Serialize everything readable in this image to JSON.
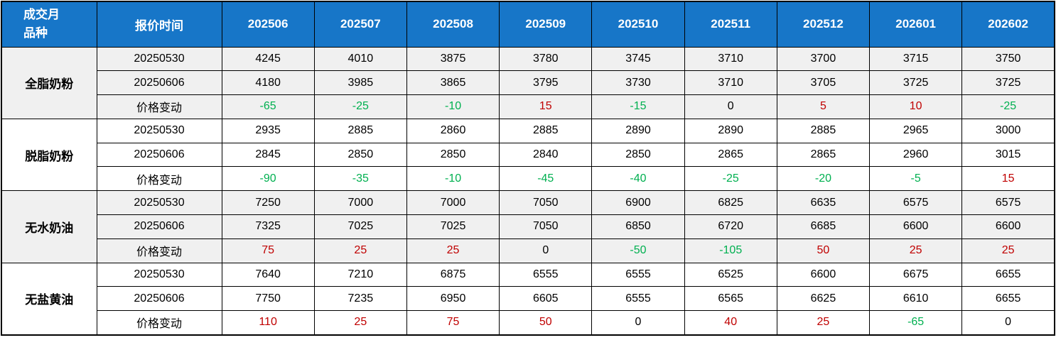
{
  "table": {
    "corner": {
      "line1": "成交月",
      "line2": "品种"
    },
    "quote_time_header": "报价时间",
    "months": [
      "202506",
      "202507",
      "202508",
      "202509",
      "202510",
      "202511",
      "202512",
      "202601",
      "202602"
    ],
    "groups": [
      {
        "product": "全脂奶粉",
        "shaded": true,
        "rows": [
          {
            "label": "20250530",
            "type": "price",
            "values": [
              4245,
              4010,
              3875,
              3780,
              3745,
              3710,
              3700,
              3715,
              3750
            ]
          },
          {
            "label": "20250606",
            "type": "price",
            "values": [
              4180,
              3985,
              3865,
              3795,
              3730,
              3710,
              3705,
              3725,
              3725
            ]
          },
          {
            "label": "价格变动",
            "type": "change",
            "values": [
              -65,
              -25,
              -10,
              15,
              -15,
              0,
              5,
              10,
              -25
            ]
          }
        ]
      },
      {
        "product": "脱脂奶粉",
        "shaded": false,
        "rows": [
          {
            "label": "20250530",
            "type": "price",
            "values": [
              2935,
              2885,
              2860,
              2885,
              2890,
              2890,
              2885,
              2965,
              3000
            ]
          },
          {
            "label": "20250606",
            "type": "price",
            "values": [
              2845,
              2850,
              2850,
              2840,
              2850,
              2865,
              2865,
              2960,
              3015
            ]
          },
          {
            "label": "价格变动",
            "type": "change",
            "values": [
              -90,
              -35,
              -10,
              -45,
              -40,
              -25,
              -20,
              -5,
              15
            ]
          }
        ]
      },
      {
        "product": "无水奶油",
        "shaded": true,
        "rows": [
          {
            "label": "20250530",
            "type": "price",
            "values": [
              7250,
              7000,
              7000,
              7050,
              6900,
              6825,
              6635,
              6575,
              6575
            ]
          },
          {
            "label": "20250606",
            "type": "price",
            "values": [
              7325,
              7025,
              7025,
              7050,
              6850,
              6720,
              6685,
              6600,
              6600
            ]
          },
          {
            "label": "价格变动",
            "type": "change",
            "values": [
              75,
              25,
              25,
              0,
              -50,
              -105,
              50,
              25,
              25
            ]
          }
        ]
      },
      {
        "product": "无盐黄油",
        "shaded": false,
        "rows": [
          {
            "label": "20250530",
            "type": "price",
            "values": [
              7640,
              7210,
              6875,
              6555,
              6555,
              6525,
              6600,
              6675,
              6655
            ]
          },
          {
            "label": "20250606",
            "type": "price",
            "values": [
              7750,
              7235,
              6950,
              6605,
              6555,
              6565,
              6625,
              6610,
              6655
            ]
          },
          {
            "label": "价格变动",
            "type": "change",
            "values": [
              110,
              25,
              75,
              50,
              0,
              40,
              25,
              -65,
              0
            ]
          }
        ]
      }
    ]
  },
  "colors": {
    "header_bg": "#1776C8",
    "header_text": "#FFFFFF",
    "row_shaded_bg": "#F0F0F0",
    "row_plain_bg": "#FFFFFF",
    "grid_line": "#000000",
    "change_up": "#C00000",
    "change_down": "#00B050",
    "change_zero": "#000000"
  }
}
